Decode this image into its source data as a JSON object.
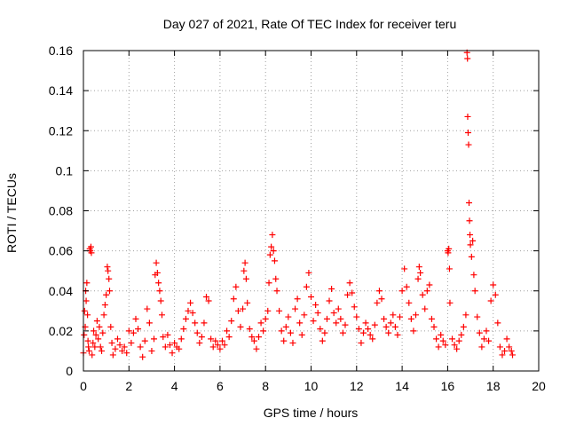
{
  "chart_data": {
    "type": "scatter",
    "title": "Day 027 of 2021, Rate Of TEC Index for receiver teru",
    "xlabel": "GPS time / hours",
    "ylabel": "ROTI / TECUs",
    "xlim": [
      0,
      20
    ],
    "ylim": [
      0,
      0.16
    ],
    "grid": true,
    "marker": "+",
    "color": "#ff0000",
    "x_ticks": [
      {
        "value": 0,
        "label": "0"
      },
      {
        "value": 2,
        "label": "2"
      },
      {
        "value": 4,
        "label": "4"
      },
      {
        "value": 6,
        "label": "6"
      },
      {
        "value": 8,
        "label": "8"
      },
      {
        "value": 10,
        "label": "10"
      },
      {
        "value": 12,
        "label": "12"
      },
      {
        "value": 14,
        "label": "14"
      },
      {
        "value": 16,
        "label": "16"
      },
      {
        "value": 18,
        "label": "18"
      },
      {
        "value": 20,
        "label": "20"
      }
    ],
    "y_ticks": [
      {
        "value": 0,
        "label": "0"
      },
      {
        "value": 0.02,
        "label": "0.02"
      },
      {
        "value": 0.04,
        "label": "0.04"
      },
      {
        "value": 0.06,
        "label": "0.06"
      },
      {
        "value": 0.08,
        "label": "0.08"
      },
      {
        "value": 0.1,
        "label": "0.1"
      },
      {
        "value": 0.12,
        "label": "0.12"
      },
      {
        "value": 0.14,
        "label": "0.14"
      },
      {
        "value": 0.16,
        "label": "0.16"
      }
    ],
    "series": [
      {
        "name": "ROTI",
        "points": [
          [
            0.0,
            0.009
          ],
          [
            0.03,
            0.018
          ],
          [
            0.05,
            0.03
          ],
          [
            0.08,
            0.022
          ],
          [
            0.1,
            0.04
          ],
          [
            0.12,
            0.035
          ],
          [
            0.15,
            0.044
          ],
          [
            0.18,
            0.028
          ],
          [
            0.2,
            0.015
          ],
          [
            0.22,
            0.012
          ],
          [
            0.25,
            0.01
          ],
          [
            0.28,
            0.061
          ],
          [
            0.3,
            0.06
          ],
          [
            0.33,
            0.062
          ],
          [
            0.35,
            0.059
          ],
          [
            0.38,
            0.008
          ],
          [
            0.42,
            0.014
          ],
          [
            0.45,
            0.02
          ],
          [
            0.5,
            0.012
          ],
          [
            0.55,
            0.018
          ],
          [
            0.6,
            0.025
          ],
          [
            0.65,
            0.016
          ],
          [
            0.7,
            0.022
          ],
          [
            0.75,
            0.012
          ],
          [
            0.8,
            0.01
          ],
          [
            0.85,
            0.019
          ],
          [
            0.9,
            0.028
          ],
          [
            0.95,
            0.033
          ],
          [
            1.0,
            0.038
          ],
          [
            1.05,
            0.052
          ],
          [
            1.08,
            0.05
          ],
          [
            1.12,
            0.046
          ],
          [
            1.15,
            0.04
          ],
          [
            1.2,
            0.022
          ],
          [
            1.25,
            0.014
          ],
          [
            1.3,
            0.008
          ],
          [
            1.4,
            0.011
          ],
          [
            1.5,
            0.016
          ],
          [
            1.6,
            0.013
          ],
          [
            1.7,
            0.01
          ],
          [
            1.8,
            0.012
          ],
          [
            1.9,
            0.009
          ],
          [
            2.0,
            0.02
          ],
          [
            2.1,
            0.014
          ],
          [
            2.2,
            0.019
          ],
          [
            2.3,
            0.026
          ],
          [
            2.4,
            0.021
          ],
          [
            2.5,
            0.012
          ],
          [
            2.6,
            0.007
          ],
          [
            2.7,
            0.015
          ],
          [
            2.8,
            0.031
          ],
          [
            2.9,
            0.024
          ],
          [
            3.0,
            0.01
          ],
          [
            3.1,
            0.016
          ],
          [
            3.15,
            0.048
          ],
          [
            3.2,
            0.054
          ],
          [
            3.25,
            0.049
          ],
          [
            3.3,
            0.044
          ],
          [
            3.35,
            0.04
          ],
          [
            3.4,
            0.035
          ],
          [
            3.45,
            0.028
          ],
          [
            3.5,
            0.017
          ],
          [
            3.6,
            0.012
          ],
          [
            3.7,
            0.018
          ],
          [
            3.8,
            0.013
          ],
          [
            3.9,
            0.009
          ],
          [
            4.0,
            0.014
          ],
          [
            4.1,
            0.012
          ],
          [
            4.2,
            0.011
          ],
          [
            4.3,
            0.016
          ],
          [
            4.4,
            0.021
          ],
          [
            4.5,
            0.026
          ],
          [
            4.6,
            0.03
          ],
          [
            4.7,
            0.034
          ],
          [
            4.8,
            0.029
          ],
          [
            4.9,
            0.024
          ],
          [
            5.0,
            0.019
          ],
          [
            5.1,
            0.014
          ],
          [
            5.2,
            0.017
          ],
          [
            5.3,
            0.024
          ],
          [
            5.4,
            0.037
          ],
          [
            5.5,
            0.035
          ],
          [
            5.6,
            0.016
          ],
          [
            5.7,
            0.012
          ],
          [
            5.8,
            0.015
          ],
          [
            5.9,
            0.013
          ],
          [
            6.0,
            0.011
          ],
          [
            6.1,
            0.015
          ],
          [
            6.2,
            0.013
          ],
          [
            6.3,
            0.02
          ],
          [
            6.4,
            0.017
          ],
          [
            6.5,
            0.025
          ],
          [
            6.6,
            0.036
          ],
          [
            6.7,
            0.042
          ],
          [
            6.8,
            0.03
          ],
          [
            6.9,
            0.022
          ],
          [
            7.0,
            0.031
          ],
          [
            7.05,
            0.05
          ],
          [
            7.1,
            0.054
          ],
          [
            7.15,
            0.046
          ],
          [
            7.2,
            0.034
          ],
          [
            7.3,
            0.021
          ],
          [
            7.4,
            0.017
          ],
          [
            7.5,
            0.015
          ],
          [
            7.6,
            0.011
          ],
          [
            7.7,
            0.017
          ],
          [
            7.8,
            0.024
          ],
          [
            7.9,
            0.02
          ],
          [
            8.0,
            0.026
          ],
          [
            8.1,
            0.03
          ],
          [
            8.15,
            0.044
          ],
          [
            8.2,
            0.058
          ],
          [
            8.25,
            0.062
          ],
          [
            8.3,
            0.068
          ],
          [
            8.35,
            0.06
          ],
          [
            8.4,
            0.055
          ],
          [
            8.45,
            0.046
          ],
          [
            8.5,
            0.04
          ],
          [
            8.6,
            0.03
          ],
          [
            8.7,
            0.02
          ],
          [
            8.8,
            0.015
          ],
          [
            8.9,
            0.022
          ],
          [
            9.0,
            0.027
          ],
          [
            9.1,
            0.019
          ],
          [
            9.2,
            0.014
          ],
          [
            9.3,
            0.031
          ],
          [
            9.4,
            0.036
          ],
          [
            9.5,
            0.024
          ],
          [
            9.6,
            0.018
          ],
          [
            9.7,
            0.028
          ],
          [
            9.8,
            0.042
          ],
          [
            9.9,
            0.049
          ],
          [
            10.0,
            0.037
          ],
          [
            10.1,
            0.025
          ],
          [
            10.2,
            0.033
          ],
          [
            10.3,
            0.029
          ],
          [
            10.4,
            0.021
          ],
          [
            10.5,
            0.015
          ],
          [
            10.6,
            0.019
          ],
          [
            10.7,
            0.026
          ],
          [
            10.8,
            0.035
          ],
          [
            10.9,
            0.041
          ],
          [
            11.0,
            0.029
          ],
          [
            11.1,
            0.024
          ],
          [
            11.2,
            0.031
          ],
          [
            11.3,
            0.026
          ],
          [
            11.4,
            0.019
          ],
          [
            11.5,
            0.023
          ],
          [
            11.6,
            0.038
          ],
          [
            11.7,
            0.044
          ],
          [
            11.8,
            0.039
          ],
          [
            11.9,
            0.032
          ],
          [
            12.0,
            0.027
          ],
          [
            12.1,
            0.021
          ],
          [
            12.2,
            0.014
          ],
          [
            12.3,
            0.019
          ],
          [
            12.4,
            0.024
          ],
          [
            12.5,
            0.021
          ],
          [
            12.6,
            0.018
          ],
          [
            12.7,
            0.016
          ],
          [
            12.8,
            0.023
          ],
          [
            12.9,
            0.034
          ],
          [
            13.0,
            0.04
          ],
          [
            13.1,
            0.036
          ],
          [
            13.2,
            0.026
          ],
          [
            13.3,
            0.022
          ],
          [
            13.4,
            0.019
          ],
          [
            13.5,
            0.024
          ],
          [
            13.6,
            0.028
          ],
          [
            13.7,
            0.022
          ],
          [
            13.8,
            0.018
          ],
          [
            13.9,
            0.027
          ],
          [
            14.0,
            0.04
          ],
          [
            14.1,
            0.051
          ],
          [
            14.2,
            0.042
          ],
          [
            14.3,
            0.034
          ],
          [
            14.4,
            0.026
          ],
          [
            14.5,
            0.02
          ],
          [
            14.6,
            0.028
          ],
          [
            14.7,
            0.046
          ],
          [
            14.75,
            0.052
          ],
          [
            14.8,
            0.049
          ],
          [
            14.9,
            0.038
          ],
          [
            15.0,
            0.031
          ],
          [
            15.1,
            0.04
          ],
          [
            15.2,
            0.043
          ],
          [
            15.3,
            0.026
          ],
          [
            15.4,
            0.022
          ],
          [
            15.5,
            0.016
          ],
          [
            15.6,
            0.012
          ],
          [
            15.7,
            0.018
          ],
          [
            15.8,
            0.015
          ],
          [
            15.9,
            0.013
          ],
          [
            16.0,
            0.06
          ],
          [
            16.02,
            0.059
          ],
          [
            16.05,
            0.061
          ],
          [
            16.08,
            0.051
          ],
          [
            16.1,
            0.034
          ],
          [
            16.2,
            0.016
          ],
          [
            16.3,
            0.013
          ],
          [
            16.4,
            0.011
          ],
          [
            16.5,
            0.015
          ],
          [
            16.6,
            0.018
          ],
          [
            16.7,
            0.022
          ],
          [
            16.8,
            0.028
          ],
          [
            16.85,
            0.159
          ],
          [
            16.87,
            0.156
          ],
          [
            16.88,
            0.127
          ],
          [
            16.9,
            0.119
          ],
          [
            16.92,
            0.113
          ],
          [
            16.94,
            0.084
          ],
          [
            16.96,
            0.075
          ],
          [
            16.98,
            0.068
          ],
          [
            17.0,
            0.063
          ],
          [
            17.05,
            0.057
          ],
          [
            17.1,
            0.065
          ],
          [
            17.15,
            0.048
          ],
          [
            17.2,
            0.04
          ],
          [
            17.3,
            0.027
          ],
          [
            17.4,
            0.019
          ],
          [
            17.5,
            0.012
          ],
          [
            17.6,
            0.016
          ],
          [
            17.7,
            0.02
          ],
          [
            17.8,
            0.015
          ],
          [
            17.9,
            0.035
          ],
          [
            18.0,
            0.043
          ],
          [
            18.1,
            0.038
          ],
          [
            18.2,
            0.024
          ],
          [
            18.3,
            0.012
          ],
          [
            18.4,
            0.008
          ],
          [
            18.5,
            0.01
          ],
          [
            18.6,
            0.016
          ],
          [
            18.7,
            0.012
          ],
          [
            18.8,
            0.01
          ],
          [
            18.85,
            0.008
          ]
        ]
      }
    ]
  }
}
